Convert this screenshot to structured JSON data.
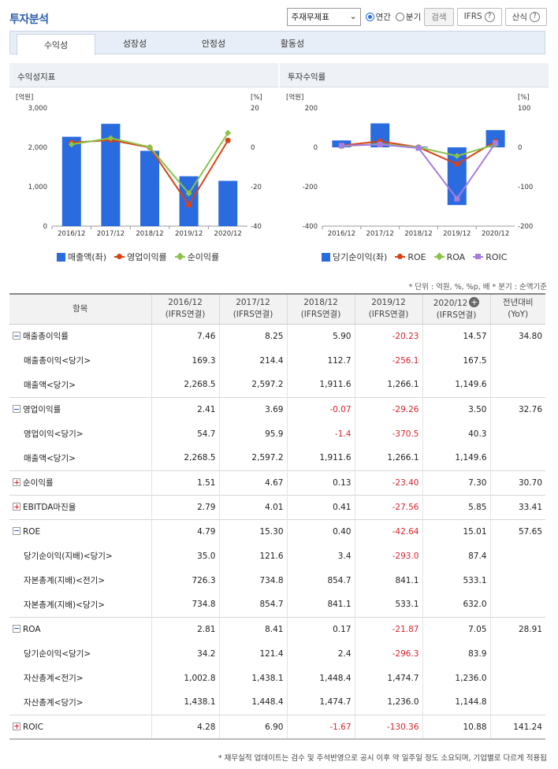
{
  "header": {
    "title": "투자분석",
    "select_value": "주재무제표",
    "radio_annual": "연간",
    "radio_quarter": "분기",
    "search_button": "검색",
    "ifrs_button": "IFRS",
    "formula_button": "산식"
  },
  "tabs": [
    "수익성",
    "성장성",
    "안정성",
    "활동성"
  ],
  "active_tab": 0,
  "chart_data": [
    {
      "type": "bar",
      "title": "수익성지표",
      "categories": [
        "2016/12",
        "2017/12",
        "2018/12",
        "2019/12",
        "2020/12"
      ],
      "left_unit": "[억원]",
      "right_unit": "[%]",
      "left_ticks": [
        "3,000",
        "2,000",
        "1,000",
        "0"
      ],
      "right_ticks": [
        "20",
        "0",
        "-20",
        "-40"
      ],
      "ylim_left": [
        0,
        3000
      ],
      "ylim_right": [
        -40,
        20
      ],
      "bar_series": {
        "name": "매출액(좌)",
        "values": [
          2268.5,
          2597.2,
          1911.6,
          1266.1,
          1149.6
        ],
        "color": "#2a6be0"
      },
      "line_series": [
        {
          "name": "영업이익률",
          "values": [
            2.41,
            3.69,
            -0.07,
            -29.26,
            3.5
          ],
          "color": "#d84315"
        },
        {
          "name": "순이익률",
          "values": [
            1.51,
            4.67,
            0.13,
            -23.4,
            7.3
          ],
          "color": "#8bc34a"
        }
      ]
    },
    {
      "type": "bar",
      "title": "투자수익률",
      "categories": [
        "2016/12",
        "2017/12",
        "2018/12",
        "2019/12",
        "2020/12"
      ],
      "left_unit": "[억원]",
      "right_unit": "[%]",
      "left_ticks": [
        "200",
        "0",
        "-200",
        "-400"
      ],
      "right_ticks": [
        "100",
        "0",
        "-100",
        "-200"
      ],
      "ylim_left": [
        -400,
        200
      ],
      "ylim_right": [
        -200,
        100
      ],
      "bar_series": {
        "name": "당기순이익(좌)",
        "values": [
          35.0,
          121.6,
          3.4,
          -293.0,
          87.4
        ],
        "color": "#2a6be0"
      },
      "line_series": [
        {
          "name": "ROE",
          "values": [
            4.79,
            15.3,
            0.4,
            -42.64,
            15.01
          ],
          "color": "#d84315"
        },
        {
          "name": "ROA",
          "values": [
            2.81,
            8.41,
            0.17,
            -21.87,
            7.05
          ],
          "color": "#8bc34a"
        },
        {
          "name": "ROIC",
          "values": [
            4.28,
            6.9,
            -1.67,
            -130.36,
            10.88
          ],
          "color": "#a57ee0"
        }
      ]
    }
  ],
  "notes": "* 단위 : 억원, %, %p, 배   * 분기 : 순액기준",
  "table": {
    "headers": [
      {
        "line1": "항목",
        "line2": ""
      },
      {
        "line1": "2016/12",
        "line2": "(IFRS연결)"
      },
      {
        "line1": "2017/12",
        "line2": "(IFRS연결)"
      },
      {
        "line1": "2018/12",
        "line2": "(IFRS연결)"
      },
      {
        "line1": "2019/12",
        "line2": "(IFRS연결)"
      },
      {
        "line1": "2020/12",
        "line2": "(IFRS연결)"
      },
      {
        "line1": "전년대비",
        "line2": "(YoY)"
      }
    ],
    "rows": [
      {
        "label": "매출총이익률",
        "kind": "main",
        "toggle": "minus",
        "cells": [
          "7.46",
          "8.25",
          "5.90",
          "-20.23",
          "14.57",
          "34.80"
        ]
      },
      {
        "label": "매출총이익<당기>",
        "kind": "sub",
        "cells": [
          "169.3",
          "214.4",
          "112.7",
          "-256.1",
          "167.5",
          ""
        ]
      },
      {
        "label": "매출액<당기>",
        "kind": "sub",
        "cells": [
          "2,268.5",
          "2,597.2",
          "1,911.6",
          "1,266.1",
          "1,149.6",
          ""
        ]
      },
      {
        "label": "영업이익률",
        "kind": "main",
        "toggle": "minus",
        "cells": [
          "2.41",
          "3.69",
          "-0.07",
          "-29.26",
          "3.50",
          "32.76"
        ]
      },
      {
        "label": "영업이익<당기>",
        "kind": "sub",
        "cells": [
          "54.7",
          "95.9",
          "-1.4",
          "-370.5",
          "40.3",
          ""
        ]
      },
      {
        "label": "매출액<당기>",
        "kind": "sub",
        "cells": [
          "2,268.5",
          "2,597.2",
          "1,911.6",
          "1,266.1",
          "1,149.6",
          ""
        ]
      },
      {
        "label": "순이익률",
        "kind": "main",
        "toggle": "plus",
        "cells": [
          "1.51",
          "4.67",
          "0.13",
          "-23.40",
          "7.30",
          "30.70"
        ]
      },
      {
        "label": "EBITDA마진율",
        "kind": "main",
        "toggle": "plus",
        "cells": [
          "2.79",
          "4.01",
          "0.41",
          "-27.56",
          "5.85",
          "33.41"
        ]
      },
      {
        "label": "ROE",
        "kind": "main",
        "toggle": "minus",
        "cells": [
          "4.79",
          "15.30",
          "0.40",
          "-42.64",
          "15.01",
          "57.65"
        ]
      },
      {
        "label": "당기순이익(지배)<당기>",
        "kind": "sub",
        "cells": [
          "35.0",
          "121.6",
          "3.4",
          "-293.0",
          "87.4",
          ""
        ]
      },
      {
        "label": "자본총계(지배)<전기>",
        "kind": "sub",
        "cells": [
          "726.3",
          "734.8",
          "854.7",
          "841.1",
          "533.1",
          ""
        ]
      },
      {
        "label": "자본총계(지배)<당기>",
        "kind": "sub",
        "cells": [
          "734.8",
          "854.7",
          "841.1",
          "533.1",
          "632.0",
          ""
        ]
      },
      {
        "label": "ROA",
        "kind": "main",
        "toggle": "minus",
        "cells": [
          "2.81",
          "8.41",
          "0.17",
          "-21.87",
          "7.05",
          "28.91"
        ]
      },
      {
        "label": "당기순이익<당기>",
        "kind": "sub",
        "cells": [
          "34.2",
          "121.4",
          "2.4",
          "-296.3",
          "83.9",
          ""
        ]
      },
      {
        "label": "자산총계<전기>",
        "kind": "sub",
        "cells": [
          "1,002.8",
          "1,438.1",
          "1,448.4",
          "1,474.7",
          "1,236.0",
          ""
        ]
      },
      {
        "label": "자산총계<당기>",
        "kind": "sub",
        "cells": [
          "1,438.1",
          "1,448.4",
          "1,474.7",
          "1,236.0",
          "1,144.8",
          ""
        ]
      },
      {
        "label": "ROIC",
        "kind": "main",
        "toggle": "plus",
        "cells": [
          "4.28",
          "6.90",
          "-1.67",
          "-130.36",
          "10.88",
          "141.24"
        ]
      }
    ]
  },
  "footer": "* 재무실적 업데이트는 검수 및 주석반영으로 공시 이후 약 일주일 정도 소요되며, 기업별로 다르게 적용됩"
}
